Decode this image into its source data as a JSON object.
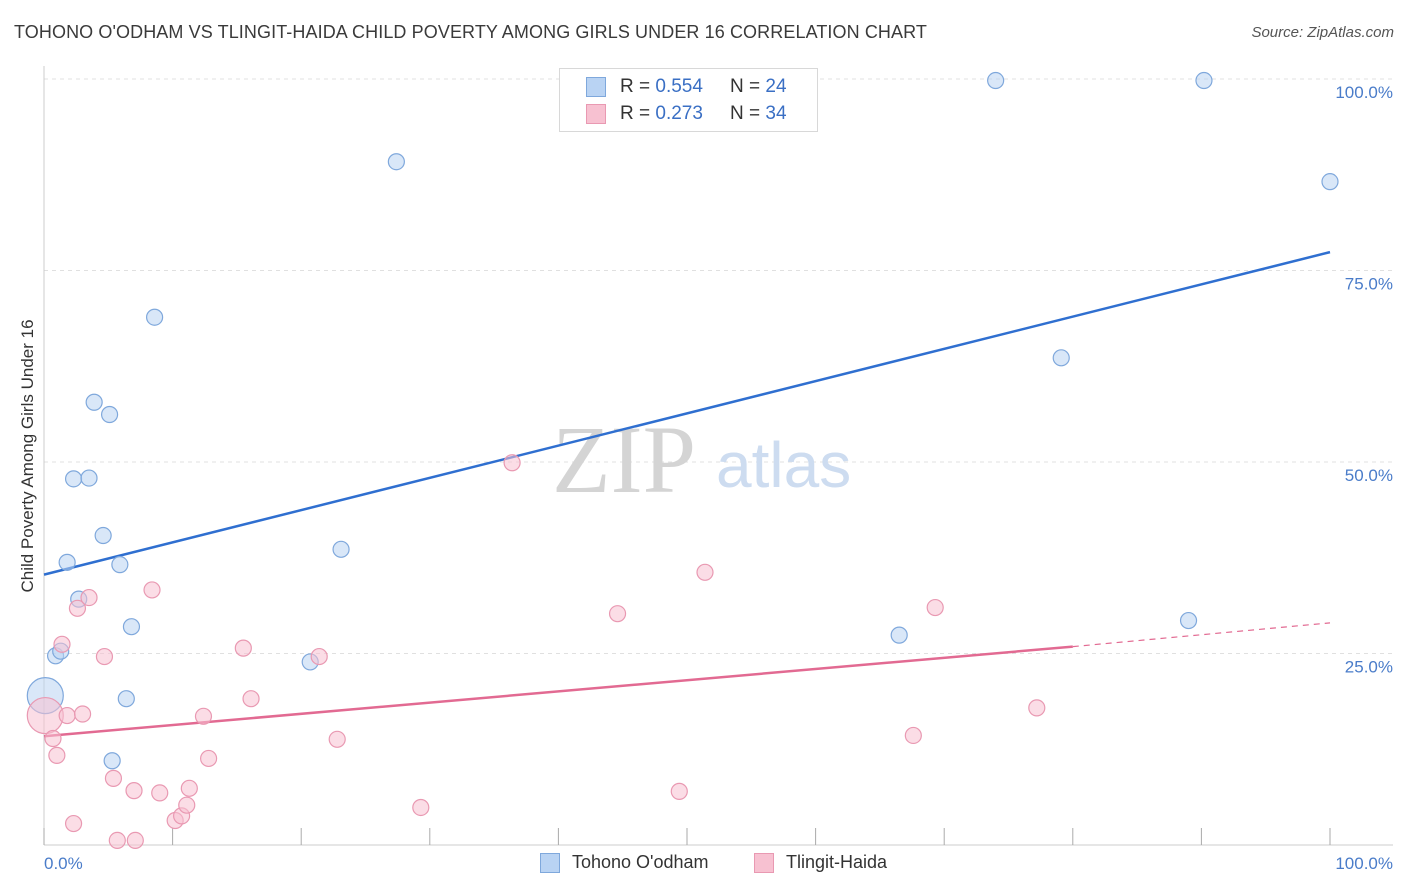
{
  "header": {
    "title": "TOHONO O'ODHAM VS TLINGIT-HAIDA CHILD POVERTY AMONG GIRLS UNDER 16 CORRELATION CHART",
    "source": "Source: ZipAtlas.com"
  },
  "watermark": {
    "zip": "ZIP",
    "atlas": "atlas"
  },
  "legend": {
    "rows": [
      {
        "r_label": "R =",
        "r_value": "0.554",
        "n_label": "N =",
        "n_value": "24"
      },
      {
        "r_label": "R =",
        "r_value": "0.273",
        "n_label": "N =",
        "n_value": "34"
      }
    ]
  },
  "colors": {
    "blue_fill": "#b9d3f3",
    "blue_stroke": "#7fa8dc",
    "blue_line": "#2f6fd0",
    "pink_fill": "#f7c1d1",
    "pink_stroke": "#e999b2",
    "pink_line": "#e26a92",
    "tick": "#4a7cc9",
    "grid": "#e0e0e0"
  },
  "chart_data": {
    "type": "scatter",
    "title": "TOHONO O'ODHAM VS TLINGIT-HAIDA CHILD POVERTY AMONG GIRLS UNDER 16 CORRELATION CHART",
    "xlabel": "",
    "ylabel": "Child Poverty Among Girls Under 16",
    "xlim": [
      0,
      100
    ],
    "ylim": [
      0,
      100
    ],
    "x_tick_labels": [
      "0.0%",
      "100.0%"
    ],
    "y_ticks": [
      25,
      50,
      75,
      100
    ],
    "y_tick_labels": [
      "25.0%",
      "50.0%",
      "75.0%",
      "100.0%"
    ],
    "grid": true,
    "legend_position": "bottom",
    "series": [
      {
        "name": "Tohono O'odham",
        "color": "#b9d3f3",
        "points": [
          {
            "x": 0.1,
            "y": 19.5,
            "big": true
          },
          {
            "x": 0.9,
            "y": 24.7
          },
          {
            "x": 1.3,
            "y": 25.3
          },
          {
            "x": 1.8,
            "y": 36.9
          },
          {
            "x": 2.3,
            "y": 47.8
          },
          {
            "x": 2.7,
            "y": 32.1
          },
          {
            "x": 3.5,
            "y": 47.9
          },
          {
            "x": 3.9,
            "y": 57.8
          },
          {
            "x": 4.6,
            "y": 40.4
          },
          {
            "x": 5.1,
            "y": 56.2
          },
          {
            "x": 5.3,
            "y": 11.0
          },
          {
            "x": 5.9,
            "y": 36.6
          },
          {
            "x": 6.4,
            "y": 19.1
          },
          {
            "x": 6.8,
            "y": 28.5
          },
          {
            "x": 8.6,
            "y": 68.9
          },
          {
            "x": 20.7,
            "y": 23.9
          },
          {
            "x": 23.1,
            "y": 38.6
          },
          {
            "x": 27.4,
            "y": 89.2
          },
          {
            "x": 66.5,
            "y": 27.4
          },
          {
            "x": 74.0,
            "y": 99.8
          },
          {
            "x": 79.1,
            "y": 63.6
          },
          {
            "x": 89.0,
            "y": 29.3
          },
          {
            "x": 90.2,
            "y": 99.8
          },
          {
            "x": 100.0,
            "y": 86.6
          }
        ],
        "trend": {
          "x0": 0,
          "y0": 35.3,
          "x1": 100,
          "y1": 77.4
        }
      },
      {
        "name": "Tlingit-Haida",
        "color": "#f7c1d1",
        "points": [
          {
            "x": 0.1,
            "y": 16.9,
            "big": true
          },
          {
            "x": 0.7,
            "y": 13.9
          },
          {
            "x": 1.0,
            "y": 11.7
          },
          {
            "x": 1.4,
            "y": 26.2
          },
          {
            "x": 1.8,
            "y": 16.9
          },
          {
            "x": 2.3,
            "y": 2.8
          },
          {
            "x": 2.6,
            "y": 30.9
          },
          {
            "x": 3.0,
            "y": 17.1
          },
          {
            "x": 3.5,
            "y": 32.3
          },
          {
            "x": 4.7,
            "y": 24.6
          },
          {
            "x": 5.4,
            "y": 8.7
          },
          {
            "x": 5.7,
            "y": 0.6
          },
          {
            "x": 7.0,
            "y": 7.1
          },
          {
            "x": 7.1,
            "y": 0.6
          },
          {
            "x": 8.4,
            "y": 33.3
          },
          {
            "x": 9.0,
            "y": 6.8
          },
          {
            "x": 10.2,
            "y": 3.2
          },
          {
            "x": 10.7,
            "y": 3.8
          },
          {
            "x": 11.1,
            "y": 5.2
          },
          {
            "x": 11.3,
            "y": 7.4
          },
          {
            "x": 12.4,
            "y": 16.8
          },
          {
            "x": 12.8,
            "y": 11.3
          },
          {
            "x": 15.5,
            "y": 25.7
          },
          {
            "x": 16.1,
            "y": 19.1
          },
          {
            "x": 22.8,
            "y": 13.8
          },
          {
            "x": 21.4,
            "y": 24.6
          },
          {
            "x": 29.3,
            "y": 4.9
          },
          {
            "x": 36.4,
            "y": 49.9
          },
          {
            "x": 44.6,
            "y": 30.2
          },
          {
            "x": 49.4,
            "y": 7.0
          },
          {
            "x": 51.4,
            "y": 35.6
          },
          {
            "x": 67.6,
            "y": 14.3
          },
          {
            "x": 69.3,
            "y": 31.0
          },
          {
            "x": 77.2,
            "y": 17.9
          }
        ],
        "trend": {
          "x0": 0,
          "y0": 14.2,
          "x1": 80,
          "y1": 25.9,
          "dash_x1": 100,
          "dash_y1": 29.0
        }
      }
    ]
  }
}
